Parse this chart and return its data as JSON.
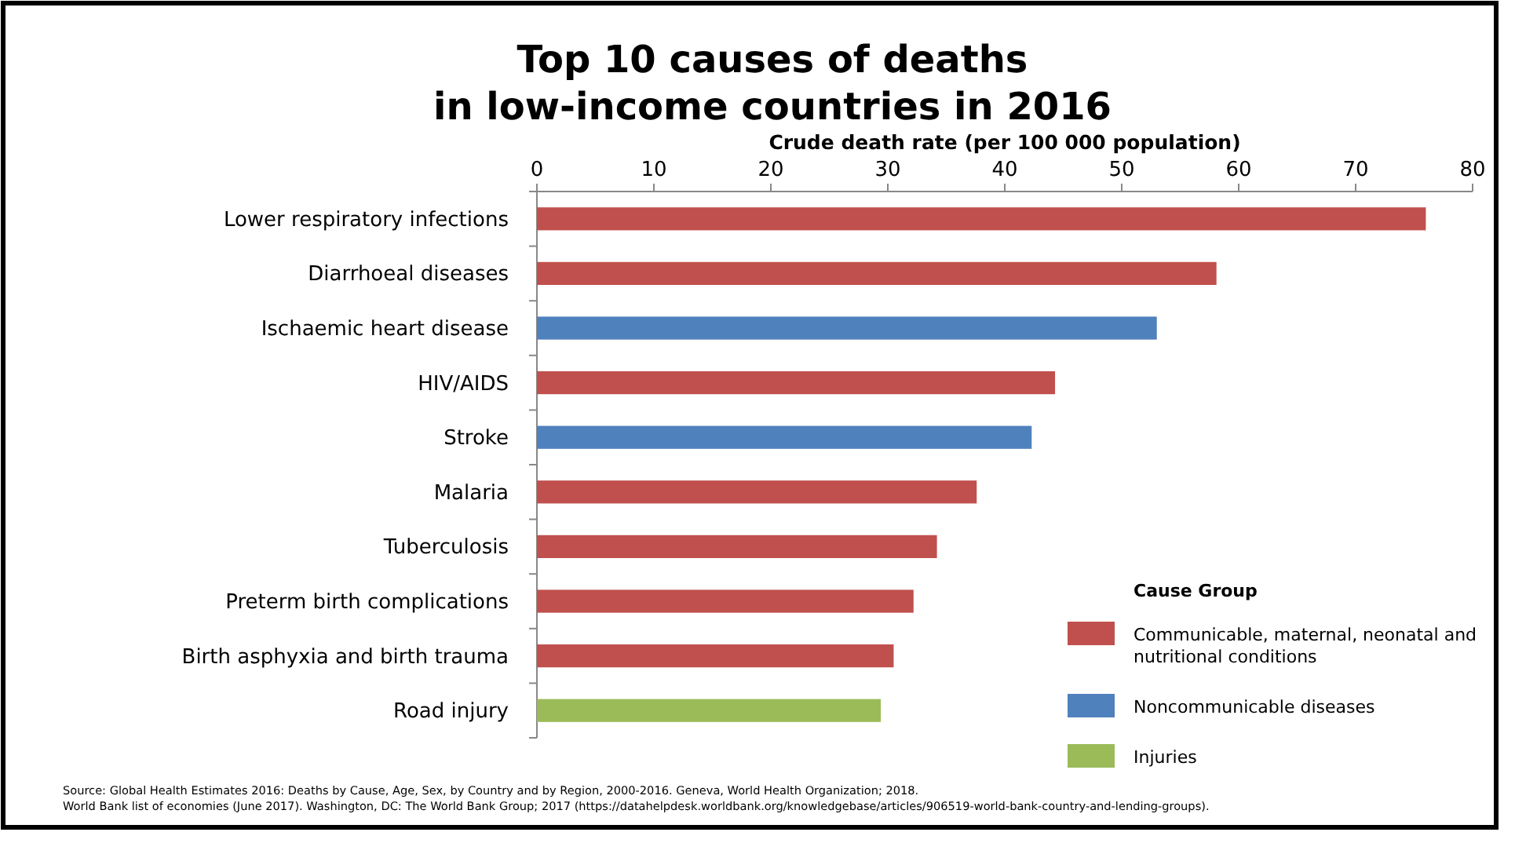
{
  "chart_data": {
    "type": "bar",
    "orientation": "horizontal",
    "title": "Top 10 causes of deaths\nin low-income countries in 2016",
    "xlabel": "Crude death rate (per 100 000 population)",
    "legend_title": "Cause Group",
    "categories": [
      "Lower respiratory infections",
      "Diarrhoeal diseases",
      "Ischaemic heart disease",
      "HIV/AIDS",
      "Stroke",
      "Malaria",
      "Tuberculosis",
      "Preterm birth complications",
      "Birth asphyxia and birth trauma",
      "Road injury"
    ],
    "series": [
      {
        "name": "Communicable, maternal, neonatal and nutritional conditions",
        "color": "#c0504d",
        "values": [
          76,
          58.1,
          null,
          44.3,
          null,
          37.6,
          34.2,
          32.2,
          30.5,
          null
        ]
      },
      {
        "name": "Noncommunicable diseases",
        "color": "#4f81bd",
        "values": [
          null,
          null,
          53,
          null,
          42.3,
          null,
          null,
          null,
          null,
          null
        ]
      },
      {
        "name": "Injuries",
        "color": "#9bbb59",
        "values": [
          null,
          null,
          null,
          null,
          null,
          null,
          null,
          null,
          null,
          29.4
        ]
      }
    ],
    "xlim": [
      0,
      80
    ],
    "xticks": [
      0,
      10,
      20,
      30,
      40,
      50,
      60,
      70,
      80
    ],
    "grid": false,
    "legend": "bottom right",
    "annotations": [
      "Source: Global Health Estimates 2016: Deaths by Cause, Age, Sex, by Country and by Region, 2000-2016. Geneva, World Health Organization; 2018.",
      "World Bank list of economies (June 2017). Washington, DC: The World Bank Group; 2017 (https://datahelpdesk.worldbank.org/knowledgebase/articles/906519-world-bank-country-and-lending-groups)."
    ]
  }
}
